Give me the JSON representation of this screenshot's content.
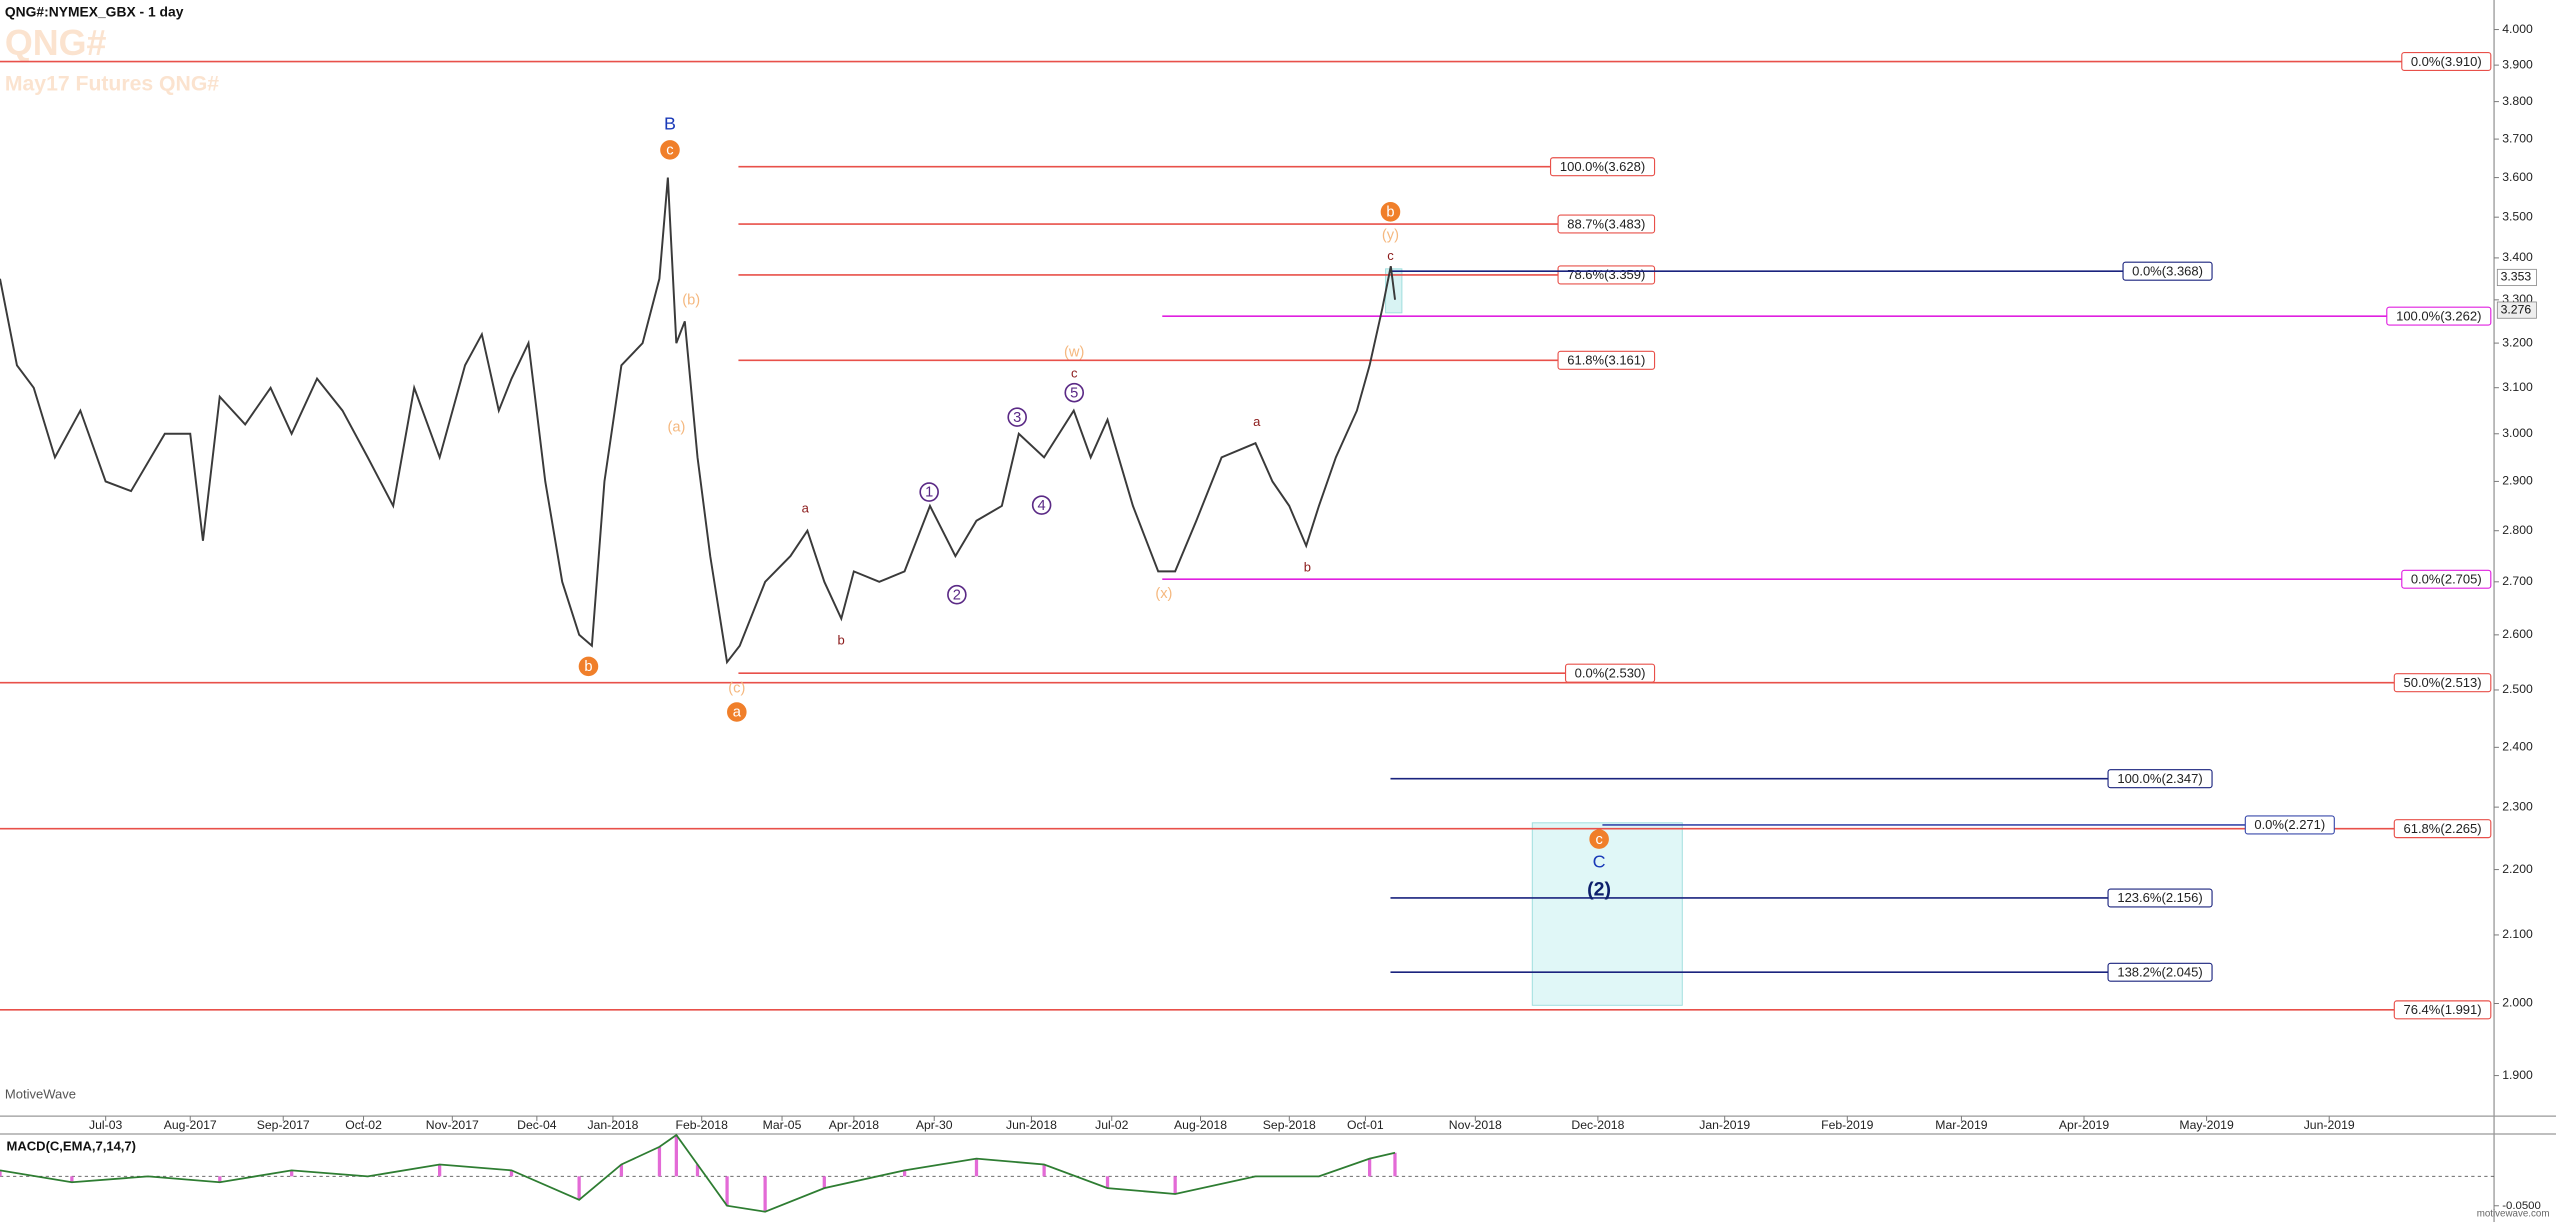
{
  "header": {
    "title": "QNG#:NYMEX_GBX - 1 day",
    "symbol": "QNG#",
    "subtitle": "May17 Futures QNG#",
    "brand": "MotiveWave",
    "footer": "motivewave.com"
  },
  "chart_data": [
    {
      "type": "line",
      "color": "#3a3a3a",
      "log_scale": true,
      "x": [
        0,
        4,
        8,
        13,
        19,
        25,
        31,
        39,
        45,
        48,
        52,
        58,
        64,
        69,
        75,
        81,
        87,
        93,
        98,
        104,
        110,
        114,
        118,
        121,
        125,
        129,
        133,
        137,
        140,
        143,
        147,
        152,
        156,
        158,
        160,
        162,
        165,
        168,
        172,
        175,
        181,
        187,
        191,
        195,
        199,
        202,
        208,
        214,
        220,
        226,
        231,
        237,
        241,
        247,
        254,
        258,
        262,
        268,
        274,
        278,
        283,
        289,
        297,
        301,
        305,
        309,
        312,
        316,
        321,
        324,
        327,
        329,
        330
      ],
      "values": [
        3.35,
        3.15,
        3.1,
        2.95,
        3.05,
        2.9,
        2.88,
        3.0,
        3.0,
        2.78,
        3.08,
        3.02,
        3.1,
        3.0,
        3.12,
        3.05,
        2.95,
        2.85,
        3.1,
        2.95,
        3.15,
        3.22,
        3.05,
        3.12,
        3.2,
        2.9,
        2.7,
        2.6,
        2.58,
        2.9,
        3.15,
        3.2,
        3.35,
        3.6,
        3.2,
        3.25,
        2.95,
        2.75,
        2.55,
        2.58,
        2.7,
        2.75,
        2.8,
        2.7,
        2.63,
        2.72,
        2.7,
        2.72,
        2.85,
        2.75,
        2.82,
        2.85,
        3.0,
        2.95,
        3.05,
        2.95,
        3.03,
        2.85,
        2.72,
        2.72,
        2.82,
        2.95,
        2.98,
        2.9,
        2.85,
        2.77,
        2.85,
        2.95,
        3.05,
        3.15,
        3.28,
        3.38,
        3.3
      ],
      "xlim": [
        0,
        590
      ],
      "xticks": [
        {
          "value": 25,
          "label": "Jul-03"
        },
        {
          "value": 45,
          "label": "Aug-2017"
        },
        {
          "value": 67,
          "label": "Sep-2017"
        },
        {
          "value": 86,
          "label": "Oct-02"
        },
        {
          "value": 107,
          "label": "Nov-2017"
        },
        {
          "value": 127,
          "label": "Dec-04"
        },
        {
          "value": 145,
          "label": "Jan-2018"
        },
        {
          "value": 166,
          "label": "Feb-2018"
        },
        {
          "value": 185,
          "label": "Mar-05"
        },
        {
          "value": 202,
          "label": "Apr-2018"
        },
        {
          "value": 221,
          "label": "Apr-30"
        },
        {
          "value": 244,
          "label": "Jun-2018"
        },
        {
          "value": 263,
          "label": "Jul-02"
        },
        {
          "value": 284,
          "label": "Aug-2018"
        },
        {
          "value": 305,
          "label": "Sep-2018"
        },
        {
          "value": 323,
          "label": "Oct-01"
        },
        {
          "value": 349,
          "label": "Nov-2018"
        },
        {
          "value": 378,
          "label": "Dec-2018"
        },
        {
          "value": 408,
          "label": "Jan-2019"
        },
        {
          "value": 437,
          "label": "Feb-2019"
        },
        {
          "value": 464,
          "label": "Mar-2019"
        },
        {
          "value": 493,
          "label": "Apr-2019"
        },
        {
          "value": 522,
          "label": "May-2019"
        },
        {
          "value": 551,
          "label": "Jun-2019"
        }
      ],
      "ylim": [
        1.846,
        4.085
      ],
      "yticks": [
        {
          "value": 1.9,
          "label": "1.900"
        },
        {
          "value": 2.0,
          "label": "2.000"
        },
        {
          "value": 2.1,
          "label": "2.100"
        },
        {
          "value": 2.2,
          "label": "2.200"
        },
        {
          "value": 2.3,
          "label": "2.300"
        },
        {
          "value": 2.4,
          "label": "2.400"
        },
        {
          "value": 2.5,
          "label": "2.500"
        },
        {
          "value": 2.6,
          "label": "2.600"
        },
        {
          "value": 2.7,
          "label": "2.700"
        },
        {
          "value": 2.8,
          "label": "2.800"
        },
        {
          "value": 2.9,
          "label": "2.900"
        },
        {
          "value": 3.0,
          "label": "3.000"
        },
        {
          "value": 3.1,
          "label": "3.100"
        },
        {
          "value": 3.2,
          "label": "3.200"
        },
        {
          "value": 3.3,
          "label": "3.300"
        },
        {
          "value": 3.4,
          "label": "3.400"
        },
        {
          "value": 3.5,
          "label": "3.500"
        },
        {
          "value": 3.6,
          "label": "3.600"
        },
        {
          "value": 3.7,
          "label": "3.700"
        },
        {
          "value": 3.8,
          "label": "3.800"
        },
        {
          "value": 3.9,
          "label": "3.900"
        },
        {
          "value": 4.0,
          "label": "4.000"
        }
      ],
      "levels": [
        {
          "label": "0.0%(3.910)",
          "value": 3.91,
          "color": "#e8504a"
        },
        {
          "label": "100.0%(3.628)",
          "value": 3.628,
          "color": "#e8504a"
        },
        {
          "label": "88.7%(3.483)",
          "value": 3.483,
          "color": "#e8504a"
        },
        {
          "label": "78.6%(3.359)",
          "value": 3.359,
          "color": "#e8504a"
        },
        {
          "label": "61.8%(3.161)",
          "value": 3.161,
          "color": "#e8504a"
        },
        {
          "label": "0.0%(2.530)",
          "value": 2.53,
          "color": "#e8504a"
        },
        {
          "label": "50.0%(2.513)",
          "value": 2.513,
          "color": "#e8504a"
        },
        {
          "label": "61.8%(2.265)",
          "value": 2.265,
          "color": "#e8504a"
        },
        {
          "label": "76.4%(1.991)",
          "value": 1.991,
          "color": "#e8504a"
        },
        {
          "label": "0.0%(3.368)",
          "value": 3.368,
          "color": "#1a237e"
        },
        {
          "label": "100.0%(2.347)",
          "value": 2.347,
          "color": "#1a237e"
        },
        {
          "label": "123.6%(2.156)",
          "value": 2.156,
          "color": "#1a237e"
        },
        {
          "label": "138.2%(2.045)",
          "value": 2.045,
          "color": "#1a237e"
        },
        {
          "label": "0.0%(2.271)",
          "value": 2.271,
          "color": "#3949ab"
        },
        {
          "label": "100.0%(3.262)",
          "value": 3.262,
          "color": "#e020e0"
        },
        {
          "label": "0.0%(2.705)",
          "value": 2.705,
          "color": "#e020e0"
        }
      ],
      "price_labels": [
        {
          "value": 3.353,
          "label": "3.353"
        },
        {
          "value": 3.276,
          "label": "3.276"
        }
      ],
      "waves": [
        "B",
        "c",
        "(b)",
        "(a)",
        "b",
        "(c)",
        "a",
        "a",
        "b",
        "1",
        "2",
        "3",
        "4",
        "5",
        "c",
        "(w)",
        "(x)",
        "a",
        "b",
        "b",
        "(y)",
        "c",
        "c",
        "C",
        "(2)"
      ]
    },
    {
      "type": "line",
      "title": "MACD(C,EMA,7,14,7)",
      "color": "#2e7d32",
      "x": [
        0,
        17,
        35,
        52,
        69,
        87,
        104,
        121,
        137,
        147,
        156,
        160,
        165,
        172,
        181,
        195,
        214,
        231,
        247,
        262,
        278,
        297,
        312,
        324,
        330
      ],
      "values": [
        0.01,
        -0.01,
        0.0,
        -0.01,
        0.01,
        0.0,
        0.02,
        0.01,
        -0.04,
        0.02,
        0.05,
        0.07,
        0.02,
        -0.05,
        -0.06,
        -0.02,
        0.01,
        0.03,
        0.02,
        -0.02,
        -0.03,
        0.0,
        0.0,
        0.03,
        0.04
      ],
      "xlim": [
        0,
        590
      ],
      "ylim": [
        -0.072,
        0.069
      ],
      "yticks": [
        {
          "value": -0.05,
          "label": "-0.0500"
        }
      ]
    }
  ]
}
